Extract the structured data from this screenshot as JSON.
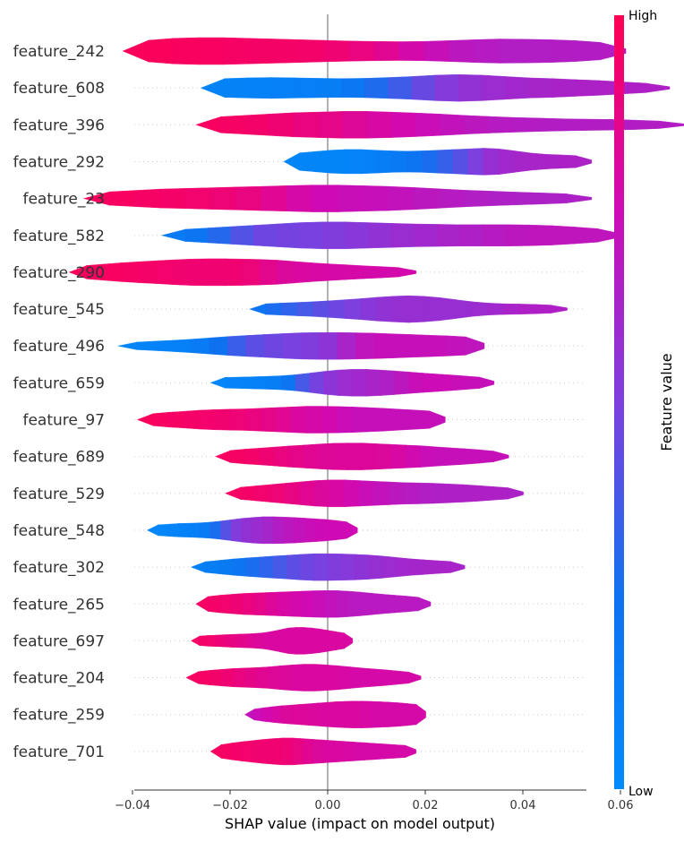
{
  "chart_data": {
    "type": "violin",
    "xlabel": "SHAP value (impact on model output)",
    "xlim": [
      -0.06,
      0.08
    ],
    "xticks": [
      -0.04,
      -0.02,
      0.0,
      0.02,
      0.04,
      0.06
    ],
    "xtick_labels": [
      "−0.04",
      "−0.02",
      "0.00",
      "0.02",
      "0.04",
      "0.06"
    ],
    "colorbar": {
      "title": "Feature value",
      "high_label": "High",
      "low_label": "Low",
      "high_color": "#ff0052",
      "low_color": "#008bfb"
    },
    "features": [
      {
        "name": "feature_242",
        "range": [
          -0.042,
          0.061
        ],
        "widths": [
          0.55,
          0.8,
          0.95,
          1.0,
          1.0,
          0.95,
          0.9,
          0.85,
          0.8,
          0.75,
          0.72,
          0.7,
          0.72,
          0.78,
          0.85,
          0.9,
          0.88,
          0.85,
          0.78,
          0.65,
          0.5
        ],
        "colors": [
          0.98,
          0.98,
          0.97,
          0.97,
          0.96,
          0.95,
          0.95,
          0.95,
          0.93,
          0.9,
          0.88,
          0.8,
          0.75,
          0.7,
          0.68,
          0.66,
          0.65,
          0.66,
          0.66,
          0.66,
          0.67
        ]
      },
      {
        "name": "feature_608",
        "range": [
          -0.026,
          0.07
        ],
        "widths": [
          0.55,
          0.7,
          0.75,
          0.78,
          0.75,
          0.72,
          0.7,
          0.72,
          0.78,
          0.85,
          0.95,
          1.0,
          0.95,
          0.85,
          0.75,
          0.7,
          0.62,
          0.55,
          0.45,
          0.35,
          0.25
        ],
        "colors": [
          0.08,
          0.08,
          0.08,
          0.1,
          0.12,
          0.12,
          0.15,
          0.25,
          0.32,
          0.4,
          0.5,
          0.55,
          0.58,
          0.6,
          0.62,
          0.63,
          0.64,
          0.64,
          0.65,
          0.65,
          0.65
        ]
      },
      {
        "name": "feature_396",
        "range": [
          -0.027,
          0.073
        ],
        "widths": [
          0.45,
          0.6,
          0.7,
          0.8,
          0.9,
          0.95,
          1.0,
          1.0,
          0.95,
          0.88,
          0.8,
          0.7,
          0.62,
          0.55,
          0.5,
          0.45,
          0.42,
          0.4,
          0.35,
          0.28,
          0.2
        ],
        "colors": [
          0.97,
          0.96,
          0.95,
          0.93,
          0.9,
          0.88,
          0.85,
          0.8,
          0.78,
          0.75,
          0.72,
          0.7,
          0.68,
          0.67,
          0.66,
          0.66,
          0.66,
          0.66,
          0.66,
          0.66,
          0.66
        ]
      },
      {
        "name": "feature_292",
        "range": [
          -0.009,
          0.054
        ],
        "widths": [
          0.55,
          0.65,
          0.75,
          0.85,
          0.9,
          0.9,
          0.85,
          0.8,
          0.78,
          0.8,
          0.85,
          0.9,
          0.95,
          1.0,
          0.95,
          0.8,
          0.65,
          0.55,
          0.5,
          0.45,
          0.35
        ],
        "colors": [
          0.06,
          0.06,
          0.06,
          0.06,
          0.06,
          0.08,
          0.12,
          0.14,
          0.2,
          0.25,
          0.3,
          0.38,
          0.45,
          0.55,
          0.6,
          0.62,
          0.63,
          0.63,
          0.64,
          0.64,
          0.64
        ]
      },
      {
        "name": "feature_23",
        "range": [
          -0.05,
          0.054
        ],
        "widths": [
          0.35,
          0.5,
          0.6,
          0.7,
          0.75,
          0.8,
          0.85,
          0.9,
          0.95,
          1.0,
          1.0,
          0.95,
          0.9,
          0.82,
          0.72,
          0.62,
          0.55,
          0.48,
          0.42,
          0.35,
          0.25
        ],
        "colors": [
          0.97,
          0.97,
          0.96,
          0.95,
          0.94,
          0.92,
          0.9,
          0.87,
          0.8,
          0.76,
          0.74,
          0.72,
          0.72,
          0.7,
          0.68,
          0.66,
          0.65,
          0.64,
          0.64,
          0.64,
          0.64
        ]
      },
      {
        "name": "feature_582",
        "range": [
          -0.034,
          0.06
        ],
        "widths": [
          0.35,
          0.45,
          0.55,
          0.65,
          0.75,
          0.85,
          0.95,
          1.0,
          1.0,
          0.95,
          0.9,
          0.85,
          0.82,
          0.8,
          0.8,
          0.8,
          0.78,
          0.72,
          0.62,
          0.5,
          0.35
        ],
        "colors": [
          0.15,
          0.18,
          0.25,
          0.35,
          0.45,
          0.48,
          0.48,
          0.5,
          0.52,
          0.55,
          0.57,
          0.6,
          0.62,
          0.64,
          0.66,
          0.68,
          0.7,
          0.7,
          0.7,
          0.7,
          0.7
        ]
      },
      {
        "name": "feature_290",
        "range": [
          -0.053,
          0.018
        ],
        "widths": [
          0.35,
          0.5,
          0.6,
          0.7,
          0.78,
          0.85,
          0.92,
          0.98,
          1.0,
          1.0,
          0.98,
          0.95,
          0.9,
          0.8,
          0.7,
          0.62,
          0.55,
          0.48,
          0.42,
          0.35,
          0.3
        ],
        "colors": [
          0.97,
          0.97,
          0.97,
          0.96,
          0.95,
          0.94,
          0.93,
          0.92,
          0.92,
          0.92,
          0.92,
          0.88,
          0.82,
          0.8,
          0.8,
          0.78,
          0.78,
          0.78,
          0.77,
          0.77,
          0.77
        ]
      },
      {
        "name": "feature_545",
        "range": [
          -0.016,
          0.049
        ],
        "widths": [
          0.35,
          0.4,
          0.45,
          0.5,
          0.55,
          0.62,
          0.7,
          0.78,
          0.88,
          0.95,
          1.0,
          0.95,
          0.85,
          0.7,
          0.55,
          0.45,
          0.4,
          0.38,
          0.35,
          0.3,
          0.25
        ],
        "colors": [
          0.2,
          0.25,
          0.3,
          0.35,
          0.4,
          0.45,
          0.48,
          0.52,
          0.55,
          0.57,
          0.58,
          0.58,
          0.58,
          0.58,
          0.58,
          0.6,
          0.62,
          0.64,
          0.65,
          0.65,
          0.65
        ]
      },
      {
        "name": "feature_496",
        "range": [
          -0.043,
          0.032
        ],
        "widths": [
          0.22,
          0.28,
          0.35,
          0.42,
          0.5,
          0.6,
          0.7,
          0.78,
          0.85,
          0.92,
          0.98,
          1.0,
          1.0,
          0.98,
          0.95,
          0.9,
          0.85,
          0.8,
          0.75,
          0.68,
          0.6
        ],
        "colors": [
          0.05,
          0.06,
          0.08,
          0.1,
          0.12,
          0.2,
          0.3,
          0.4,
          0.45,
          0.48,
          0.5,
          0.52,
          0.58,
          0.68,
          0.72,
          0.72,
          0.72,
          0.72,
          0.72,
          0.7,
          0.7
        ]
      },
      {
        "name": "feature_659",
        "range": [
          -0.024,
          0.034
        ],
        "widths": [
          0.35,
          0.4,
          0.42,
          0.45,
          0.48,
          0.52,
          0.6,
          0.72,
          0.85,
          0.95,
          1.0,
          1.0,
          0.95,
          0.88,
          0.8,
          0.72,
          0.65,
          0.58,
          0.5,
          0.42,
          0.35
        ],
        "colors": [
          0.05,
          0.06,
          0.08,
          0.1,
          0.12,
          0.15,
          0.3,
          0.45,
          0.52,
          0.58,
          0.6,
          0.62,
          0.64,
          0.66,
          0.72,
          0.74,
          0.74,
          0.74,
          0.72,
          0.72,
          0.72
        ]
      },
      {
        "name": "feature_97",
        "range": [
          -0.039,
          0.024
        ],
        "widths": [
          0.35,
          0.45,
          0.55,
          0.62,
          0.7,
          0.75,
          0.78,
          0.8,
          0.85,
          0.9,
          0.95,
          1.0,
          1.0,
          0.98,
          0.95,
          0.9,
          0.85,
          0.78,
          0.72,
          0.65,
          0.58
        ],
        "colors": [
          0.98,
          0.97,
          0.96,
          0.95,
          0.94,
          0.93,
          0.92,
          0.9,
          0.88,
          0.85,
          0.82,
          0.78,
          0.78,
          0.75,
          0.72,
          0.72,
          0.72,
          0.72,
          0.72,
          0.72,
          0.72
        ]
      },
      {
        "name": "feature_689",
        "range": [
          -0.023,
          0.037
        ],
        "widths": [
          0.35,
          0.45,
          0.55,
          0.62,
          0.7,
          0.78,
          0.85,
          0.92,
          0.98,
          1.0,
          1.0,
          0.95,
          0.9,
          0.85,
          0.8,
          0.72,
          0.65,
          0.58,
          0.5,
          0.4,
          0.3
        ],
        "colors": [
          0.97,
          0.96,
          0.95,
          0.93,
          0.9,
          0.88,
          0.85,
          0.83,
          0.82,
          0.82,
          0.82,
          0.82,
          0.8,
          0.78,
          0.74,
          0.72,
          0.72,
          0.72,
          0.72,
          0.72,
          0.72
        ]
      },
      {
        "name": "feature_529",
        "range": [
          -0.021,
          0.04
        ],
        "widths": [
          0.35,
          0.45,
          0.55,
          0.65,
          0.75,
          0.85,
          0.95,
          1.0,
          1.0,
          0.95,
          0.9,
          0.85,
          0.8,
          0.78,
          0.75,
          0.7,
          0.65,
          0.58,
          0.5,
          0.42,
          0.32
        ],
        "colors": [
          0.96,
          0.95,
          0.94,
          0.92,
          0.9,
          0.86,
          0.82,
          0.8,
          0.78,
          0.74,
          0.72,
          0.7,
          0.68,
          0.66,
          0.65,
          0.65,
          0.65,
          0.65,
          0.65,
          0.64,
          0.64
        ]
      },
      {
        "name": "feature_548",
        "range": [
          -0.037,
          0.006
        ],
        "widths": [
          0.35,
          0.4,
          0.45,
          0.5,
          0.52,
          0.55,
          0.6,
          0.68,
          0.78,
          0.88,
          0.95,
          1.0,
          1.0,
          0.98,
          0.95,
          0.9,
          0.85,
          0.8,
          0.72,
          0.62,
          0.5
        ],
        "colors": [
          0.05,
          0.05,
          0.06,
          0.08,
          0.1,
          0.12,
          0.2,
          0.35,
          0.48,
          0.55,
          0.58,
          0.6,
          0.64,
          0.68,
          0.7,
          0.72,
          0.74,
          0.75,
          0.75,
          0.75,
          0.75
        ]
      },
      {
        "name": "feature_302",
        "range": [
          -0.028,
          0.028
        ],
        "widths": [
          0.3,
          0.4,
          0.5,
          0.6,
          0.68,
          0.75,
          0.82,
          0.88,
          0.95,
          1.0,
          1.0,
          0.98,
          0.95,
          0.9,
          0.82,
          0.72,
          0.62,
          0.55,
          0.48,
          0.42,
          0.35
        ],
        "colors": [
          0.1,
          0.12,
          0.15,
          0.2,
          0.25,
          0.3,
          0.35,
          0.4,
          0.45,
          0.48,
          0.5,
          0.52,
          0.54,
          0.56,
          0.58,
          0.6,
          0.62,
          0.62,
          0.63,
          0.63,
          0.63
        ]
      },
      {
        "name": "feature_265",
        "range": [
          -0.027,
          0.021
        ],
        "widths": [
          0.45,
          0.55,
          0.65,
          0.72,
          0.78,
          0.82,
          0.85,
          0.88,
          0.92,
          0.95,
          0.98,
          1.0,
          1.0,
          0.95,
          0.88,
          0.8,
          0.72,
          0.65,
          0.58,
          0.5,
          0.4
        ],
        "colors": [
          0.96,
          0.95,
          0.94,
          0.92,
          0.9,
          0.88,
          0.84,
          0.8,
          0.78,
          0.76,
          0.74,
          0.72,
          0.7,
          0.68,
          0.68,
          0.68,
          0.68,
          0.68,
          0.68,
          0.68,
          0.68
        ]
      },
      {
        "name": "feature_697",
        "range": [
          -0.028,
          0.005
        ],
        "widths": [
          0.3,
          0.35,
          0.4,
          0.42,
          0.45,
          0.48,
          0.5,
          0.52,
          0.55,
          0.6,
          0.7,
          0.82,
          0.95,
          1.0,
          1.0,
          0.95,
          0.88,
          0.78,
          0.68,
          0.58,
          0.48
        ],
        "colors": [
          0.96,
          0.95,
          0.94,
          0.92,
          0.9,
          0.88,
          0.86,
          0.84,
          0.82,
          0.8,
          0.8,
          0.8,
          0.8,
          0.8,
          0.8,
          0.8,
          0.8,
          0.8,
          0.8,
          0.8,
          0.8
        ]
      },
      {
        "name": "feature_204",
        "range": [
          -0.029,
          0.019
        ],
        "widths": [
          0.35,
          0.45,
          0.55,
          0.62,
          0.68,
          0.72,
          0.75,
          0.8,
          0.88,
          0.95,
          1.0,
          1.0,
          0.95,
          0.88,
          0.8,
          0.72,
          0.65,
          0.58,
          0.5,
          0.42,
          0.35
        ],
        "colors": [
          0.97,
          0.96,
          0.95,
          0.93,
          0.9,
          0.88,
          0.85,
          0.83,
          0.82,
          0.8,
          0.8,
          0.8,
          0.8,
          0.8,
          0.78,
          0.78,
          0.78,
          0.78,
          0.78,
          0.78,
          0.78
        ]
      },
      {
        "name": "feature_259",
        "range": [
          -0.017,
          0.02
        ],
        "widths": [
          0.3,
          0.4,
          0.5,
          0.58,
          0.65,
          0.7,
          0.75,
          0.8,
          0.85,
          0.9,
          0.95,
          0.98,
          1.0,
          1.0,
          0.98,
          0.95,
          0.92,
          0.88,
          0.82,
          0.75,
          0.65
        ],
        "colors": [
          0.7,
          0.72,
          0.75,
          0.78,
          0.8,
          0.82,
          0.82,
          0.82,
          0.8,
          0.8,
          0.8,
          0.8,
          0.8,
          0.8,
          0.78,
          0.78,
          0.78,
          0.78,
          0.78,
          0.78,
          0.78
        ]
      },
      {
        "name": "feature_701",
        "range": [
          -0.024,
          0.018
        ],
        "widths": [
          0.35,
          0.5,
          0.62,
          0.72,
          0.8,
          0.88,
          0.95,
          1.0,
          1.0,
          0.95,
          0.9,
          0.85,
          0.8,
          0.75,
          0.7,
          0.65,
          0.6,
          0.55,
          0.5,
          0.45,
          0.4
        ],
        "colors": [
          0.97,
          0.96,
          0.95,
          0.94,
          0.93,
          0.92,
          0.92,
          0.92,
          0.9,
          0.86,
          0.82,
          0.8,
          0.8,
          0.8,
          0.78,
          0.78,
          0.78,
          0.78,
          0.78,
          0.78,
          0.78
        ]
      }
    ]
  }
}
